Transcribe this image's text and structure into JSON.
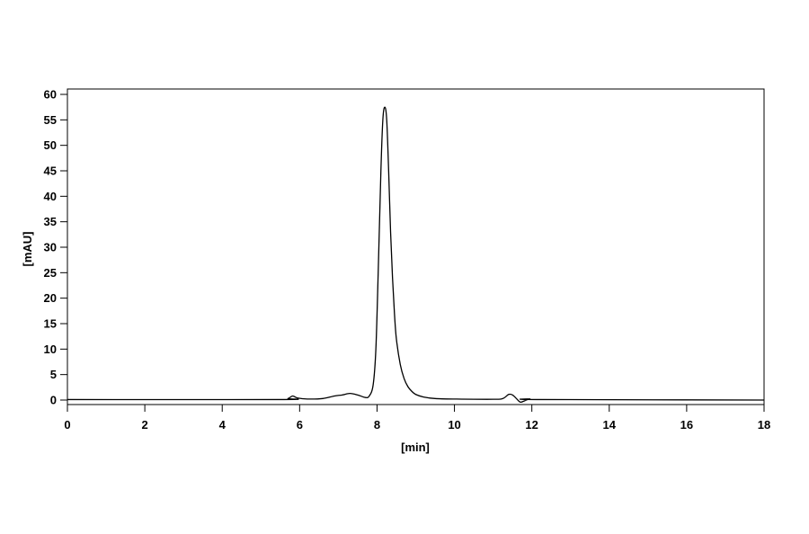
{
  "chart_data": {
    "type": "line",
    "title": "",
    "xlabel": "[min]",
    "ylabel": "[mAU]",
    "xlim": [
      0,
      18
    ],
    "ylim": [
      -1,
      61
    ],
    "xticks": [
      0,
      2,
      4,
      6,
      8,
      10,
      12,
      14,
      16,
      18
    ],
    "yticks": [
      0,
      5,
      10,
      15,
      20,
      25,
      30,
      35,
      40,
      45,
      50,
      55,
      60
    ],
    "grid": false,
    "line_color": "#000000",
    "series": [
      {
        "x": [
          0,
          5.5,
          5.7,
          5.82,
          5.95,
          6.2,
          6.6,
          6.9,
          7.1,
          7.3,
          7.5,
          7.7,
          7.8,
          7.9,
          7.97,
          8.03,
          8.1,
          8.15,
          8.2,
          8.25,
          8.3,
          8.35,
          8.4,
          8.45,
          8.5,
          8.6,
          8.7,
          8.8,
          8.9,
          9.0,
          9.2,
          9.5,
          10,
          11,
          11.25,
          11.4,
          11.5,
          11.6,
          11.7,
          11.8,
          11.95,
          12.2,
          18
        ],
        "y": [
          0.1,
          0.1,
          0.3,
          0.8,
          0.4,
          0.2,
          0.3,
          0.8,
          1.0,
          1.3,
          1.0,
          0.5,
          0.8,
          3,
          10,
          25,
          45,
          55,
          57.5,
          55,
          45,
          33,
          24,
          17,
          12,
          7,
          4.2,
          2.6,
          1.7,
          1.1,
          0.6,
          0.3,
          0.2,
          0.15,
          0.3,
          1.1,
          1.0,
          0.3,
          -0.4,
          -0.2,
          0.2,
          0.1,
          0.0
        ]
      }
    ]
  }
}
